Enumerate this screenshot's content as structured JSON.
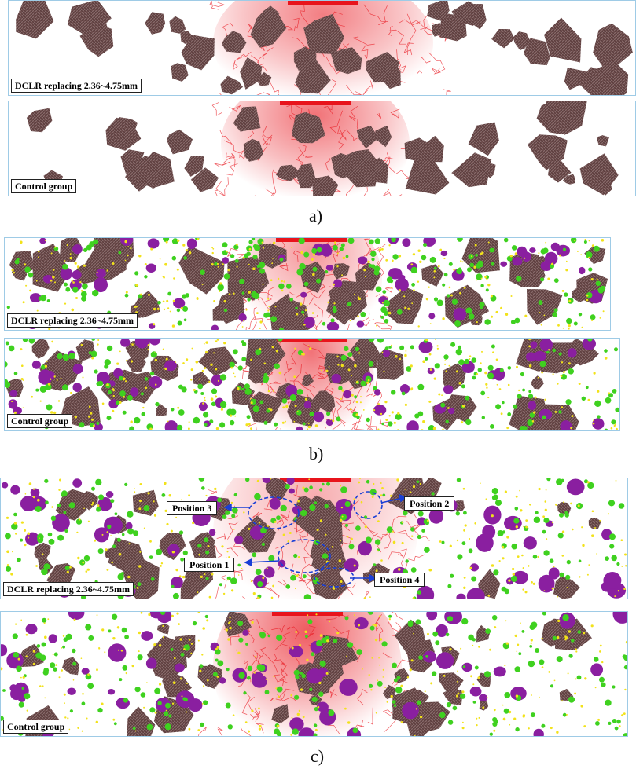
{
  "figure": {
    "captions": {
      "a": "a)",
      "b": "b)",
      "c": "c)"
    },
    "labels": {
      "dclr": "DCLR replacing 2.36~4.75mm",
      "control": "Control group"
    },
    "callouts": {
      "position_1": "Position 1",
      "position_2": "Position 2",
      "position_3": "Position 3",
      "position_4": "Position 4"
    },
    "colors": {
      "aggregate": "#6b4a4a",
      "crack": "#e8141c",
      "large_particle": "#8a1fa0",
      "small_particle": "#3fd11f",
      "fine_particle": "#f2e21a",
      "callout_circle": "#1a3fd6",
      "frame": "#9ecbe6"
    }
  }
}
